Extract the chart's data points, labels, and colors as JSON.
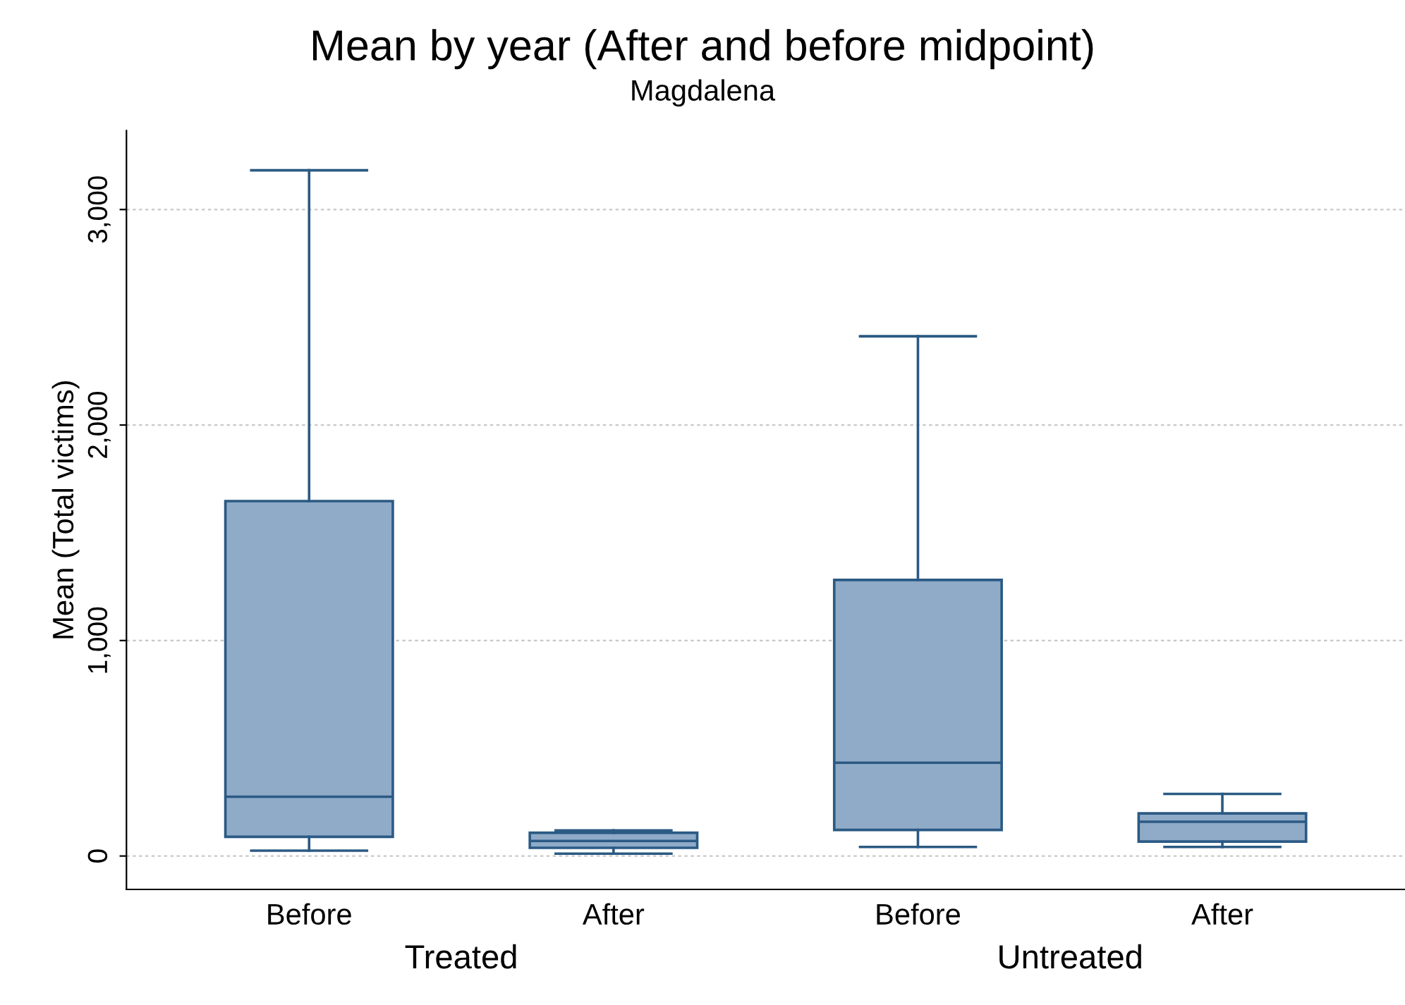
{
  "chart_data": {
    "type": "box",
    "title": "Mean by year (After and before midpoint)",
    "subtitle": "Magdalena",
    "ylabel": "Mean (Total victims)",
    "categories": [
      "Before",
      "After",
      "Before",
      "After"
    ],
    "annotations": [
      "Treated",
      "Untreated"
    ],
    "series": [
      {
        "color": "#8fabc8",
        "boxes": [
          {
            "low": 25,
            "q1": 89,
            "median": 275,
            "q3": 1647,
            "high": 3182
          },
          {
            "low": 11,
            "q1": 38,
            "median": 70,
            "q3": 108,
            "high": 119
          },
          {
            "low": 42,
            "q1": 121,
            "median": 433,
            "q3": 1281,
            "high": 2412
          },
          {
            "low": 42,
            "q1": 67,
            "median": 159,
            "q3": 198,
            "high": 288
          }
        ]
      }
    ],
    "ylim": [
      -155,
      3366
    ],
    "yticks": [
      {
        "value": 0,
        "label": "0"
      },
      {
        "value": 1000,
        "label": "1,000"
      },
      {
        "value": 2000,
        "label": "2,000"
      },
      {
        "value": 3000,
        "label": "3,000"
      }
    ],
    "grid": "y"
  }
}
